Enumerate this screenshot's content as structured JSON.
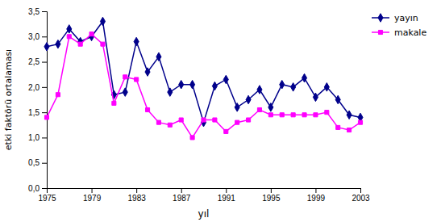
{
  "chart_data": {
    "type": "line",
    "xlabel": "yıl",
    "ylabel": "etki faktörü ortalaması",
    "x": [
      1975,
      1976,
      1977,
      1978,
      1979,
      1980,
      1981,
      1982,
      1983,
      1984,
      1985,
      1986,
      1987,
      1988,
      1989,
      1990,
      1991,
      1992,
      1993,
      1994,
      1995,
      1996,
      1997,
      1998,
      1999,
      2000,
      2001,
      2002,
      2003
    ],
    "series": [
      {
        "name": "yayın",
        "color": "#00008B",
        "marker": "diamond",
        "values": [
          2.8,
          2.85,
          3.15,
          2.9,
          3.0,
          3.3,
          1.85,
          1.9,
          2.9,
          2.3,
          2.6,
          1.9,
          2.05,
          2.05,
          1.3,
          2.02,
          2.15,
          1.6,
          1.75,
          1.95,
          1.6,
          2.05,
          2.0,
          2.18,
          1.8,
          2.0,
          1.75,
          1.45,
          1.4
        ]
      },
      {
        "name": "makale",
        "color": "#FF00FF",
        "marker": "square",
        "values": [
          1.4,
          1.85,
          3.0,
          2.85,
          3.05,
          2.85,
          1.68,
          2.2,
          2.15,
          1.55,
          1.3,
          1.25,
          1.35,
          1.0,
          1.35,
          1.35,
          1.12,
          1.3,
          1.35,
          1.55,
          1.45,
          1.45,
          1.45,
          1.45,
          1.45,
          1.5,
          1.2,
          1.15,
          1.3
        ]
      }
    ],
    "xlim": [
      1975,
      2003
    ],
    "xticks": [
      1975,
      1979,
      1983,
      1987,
      1991,
      1995,
      1999,
      2003
    ],
    "ylim": [
      0.0,
      3.5
    ],
    "yticks": [
      {
        "value": 0.0,
        "label": "0,0"
      },
      {
        "value": 0.5,
        "label": "0,5"
      },
      {
        "value": 1.0,
        "label": "1,0"
      },
      {
        "value": 1.5,
        "label": "1,5"
      },
      {
        "value": 2.0,
        "label": "2,0"
      },
      {
        "value": 2.5,
        "label": "2,5"
      },
      {
        "value": 3.0,
        "label": "3,0"
      },
      {
        "value": 3.5,
        "label": "3,5"
      }
    ],
    "grid": false,
    "legend": "right"
  }
}
